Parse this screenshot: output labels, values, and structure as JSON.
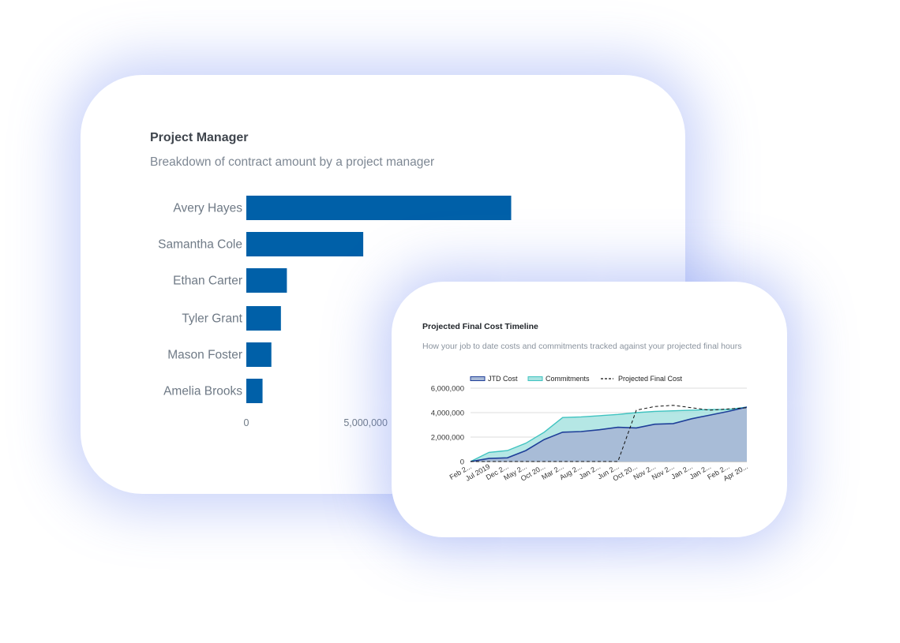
{
  "chart_data": [
    {
      "type": "bar",
      "orientation": "horizontal",
      "title": "Project Manager",
      "subtitle": "Breakdown of contract amount by a project manager",
      "categories": [
        "Avery Hayes",
        "Samantha Cole",
        "Ethan Carter",
        "Tyler Grant",
        "Mason Foster",
        "Amelia Brooks"
      ],
      "values": [
        11100000,
        4900000,
        1700000,
        1450000,
        1050000,
        680000
      ],
      "xticks": [
        0,
        5000000
      ],
      "xtick_labels": [
        "0",
        "5,000,000"
      ],
      "xlim": [
        0,
        11100000
      ],
      "color": "#0060a8",
      "grid": false,
      "legend": "none"
    },
    {
      "type": "area",
      "title": "Projected Final Cost Timeline",
      "subtitle": "How your job to date costs and commitments tracked against your projected final hours",
      "legend": "top",
      "grid": true,
      "ylim": [
        0,
        6000000
      ],
      "yticks": [
        0,
        2000000,
        4000000,
        6000000
      ],
      "ytick_labels": [
        "0",
        "2,000,000",
        "4,000,000",
        "6,000,000"
      ],
      "xtick_labels": [
        "Feb 2...",
        "Jul 2019",
        "Dec 2...",
        "May 2...",
        "Oct 20...",
        "Mar 2...",
        "Aug 2...",
        "Jan 2...",
        "Jun 2...",
        "Oct 20...",
        "Nov 2...",
        "Nov 2...",
        "Jan 2...",
        "Jan 2...",
        "Feb 2...",
        "Apr 20..."
      ],
      "x": [
        0,
        1,
        2,
        3,
        4,
        5,
        6,
        7,
        8,
        9,
        10,
        11,
        12,
        13,
        14,
        15
      ],
      "series": [
        {
          "name": "JTD Cost",
          "color": "#1f3f99",
          "fill": "#a8b9d6",
          "values": [
            0,
            250000,
            300000,
            900000,
            1800000,
            2400000,
            2450000,
            2600000,
            2800000,
            2750000,
            3050000,
            3100000,
            3500000,
            3800000,
            4100000,
            4450000
          ]
        },
        {
          "name": "Commitments",
          "color": "#3fc3c0",
          "fill": "#a8e3e1",
          "values": [
            0,
            750000,
            900000,
            1500000,
            2400000,
            3600000,
            3650000,
            3750000,
            3850000,
            4000000,
            4100000,
            4150000,
            4200000,
            4250000,
            4250000,
            4450000
          ]
        },
        {
          "name": "Projected Final Cost",
          "color": "#111111",
          "style": "dashed",
          "values": [
            0,
            0,
            0,
            0,
            0,
            0,
            0,
            0,
            0,
            4200000,
            4500000,
            4600000,
            4400000,
            4200000,
            4300000,
            4400000
          ]
        }
      ]
    }
  ]
}
